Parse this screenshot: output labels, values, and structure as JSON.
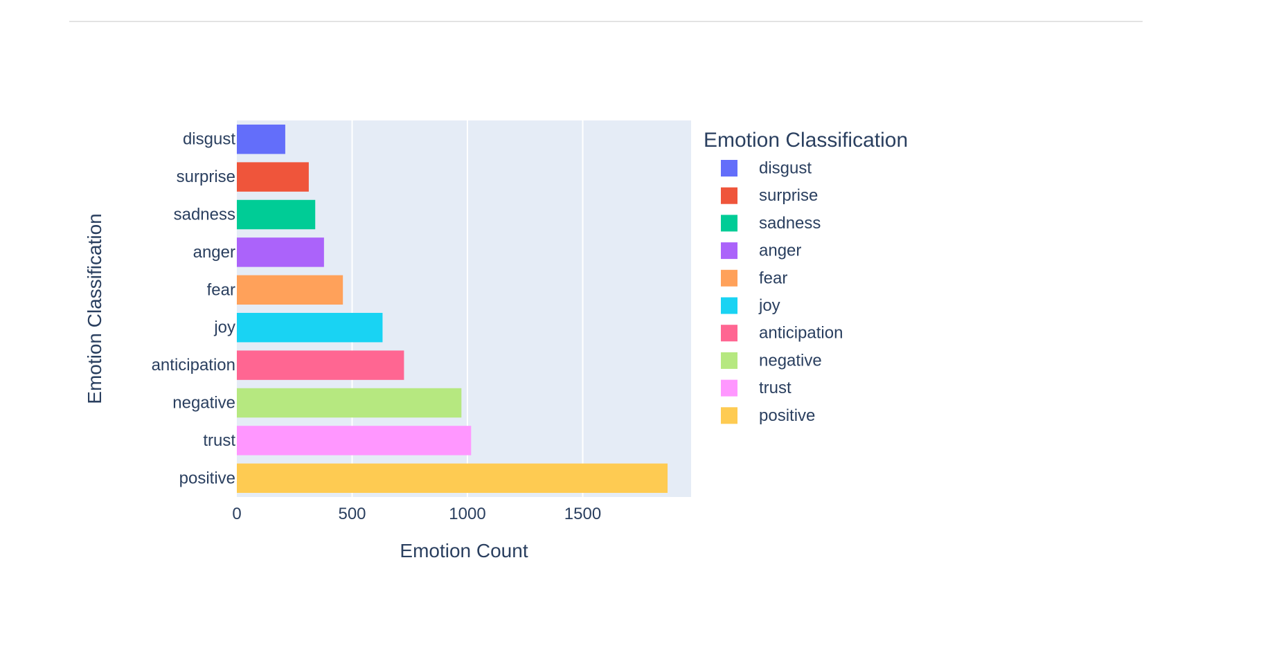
{
  "chart_data": {
    "type": "bar",
    "orientation": "horizontal",
    "categories": [
      "disgust",
      "surprise",
      "sadness",
      "anger",
      "fear",
      "joy",
      "anticipation",
      "negative",
      "trust",
      "positive"
    ],
    "values": [
      210,
      312,
      340,
      378,
      460,
      632,
      725,
      974,
      1016,
      1868
    ],
    "colors": [
      "#636efa",
      "#EF553B",
      "#00cc96",
      "#ab63fa",
      "#FFA15A",
      "#19d3f3",
      "#FF6692",
      "#B6E880",
      "#FF97FF",
      "#FECB52"
    ],
    "xlabel": "Emotion Count",
    "ylabel": "Emotion Classification",
    "xlim": [
      0,
      1970
    ],
    "xticks": [
      0,
      500,
      1000,
      1500
    ],
    "xtick_labels": [
      "0",
      "500",
      "1000",
      "1500"
    ],
    "grid": true,
    "plot_background": "#e5ecf6",
    "legend": {
      "title": "Emotion Classification",
      "placement": "right",
      "entries": [
        "disgust",
        "surprise",
        "sadness",
        "anger",
        "fear",
        "joy",
        "anticipation",
        "negative",
        "trust",
        "positive"
      ]
    }
  }
}
